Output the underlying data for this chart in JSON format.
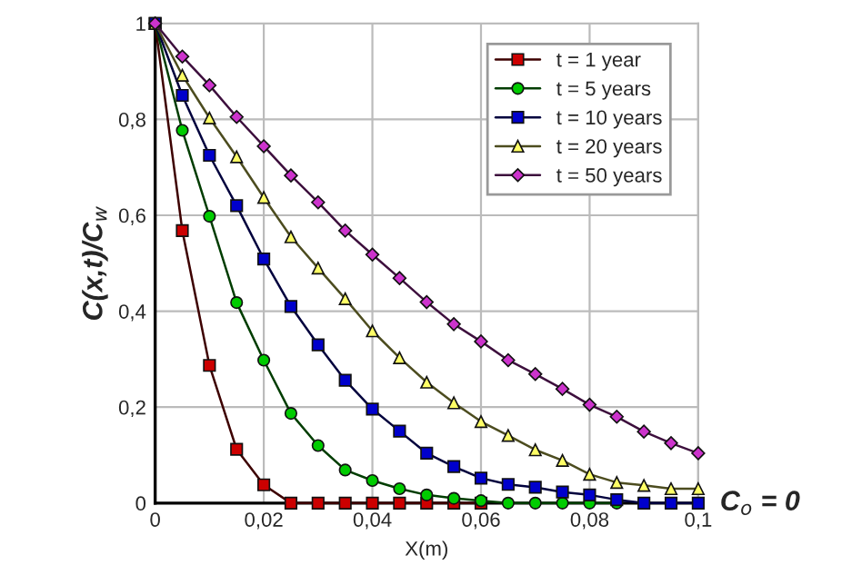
{
  "chart_data": {
    "type": "line",
    "xlabel": "X(m)",
    "ylabel": "C(x,t)/C$_{w}$",
    "x": [
      0,
      0.005,
      0.01,
      0.015,
      0.02,
      0.025,
      0.03,
      0.035,
      0.04,
      0.045,
      0.05,
      0.055,
      0.06,
      0.065,
      0.07,
      0.075,
      0.08,
      0.085,
      0.09,
      0.095,
      0.1
    ],
    "series": [
      {
        "name": "t = 1 year",
        "color": "#cc0000",
        "marker": "square",
        "values": [
          1,
          0.568,
          0.287,
          0.112,
          0.038,
          0,
          0,
          0,
          0,
          0,
          0,
          0,
          0,
          null,
          null,
          null,
          null,
          null,
          null,
          null,
          null
        ]
      },
      {
        "name": "t = 5 years",
        "color": "#00cc00",
        "marker": "circle",
        "values": [
          1,
          0.777,
          0.598,
          0.418,
          0.298,
          0.187,
          0.12,
          0.069,
          0.047,
          0.03,
          0.017,
          0.01,
          0.005,
          0,
          0,
          0,
          0,
          0,
          null,
          null,
          null
        ]
      },
      {
        "name": "t = 10 years",
        "color": "#0000cc",
        "marker": "square",
        "values": [
          1,
          0.85,
          0.725,
          0.62,
          0.509,
          0.41,
          0.33,
          0.256,
          0.196,
          0.15,
          0.104,
          0.076,
          0.052,
          0.039,
          0.033,
          0.023,
          0.017,
          0.007,
          0,
          0,
          0
        ]
      },
      {
        "name": "t = 20 years",
        "color": "#ffff66",
        "marker": "triangle",
        "values": [
          1,
          0.892,
          0.803,
          0.722,
          0.637,
          0.555,
          0.49,
          0.426,
          0.359,
          0.303,
          0.252,
          0.209,
          0.17,
          0.141,
          0.111,
          0.089,
          0.06,
          0.043,
          0.037,
          0.03,
          0.03
        ]
      },
      {
        "name": "t = 50 years",
        "color": "#cc33cc",
        "marker": "diamond",
        "values": [
          1,
          0.931,
          0.871,
          0.805,
          0.744,
          0.683,
          0.627,
          0.568,
          0.518,
          0.469,
          0.419,
          0.373,
          0.337,
          0.298,
          0.269,
          0.238,
          0.205,
          0.18,
          0.149,
          0.125,
          0.104
        ]
      }
    ],
    "xlim": [
      0,
      0.1
    ],
    "ylim": [
      0,
      1
    ],
    "xticks": [
      0,
      {
        "value": 0.02,
        "label": "0,02"
      },
      {
        "value": 0.04,
        "label": "0,04"
      },
      {
        "value": 0.06,
        "label": "0,06"
      },
      {
        "value": 0.08,
        "label": "0,08"
      },
      {
        "value": 0.1,
        "label": "0,1"
      }
    ],
    "yticks": [
      0,
      {
        "value": 0.2,
        "label": "0,2"
      },
      {
        "value": 0.4,
        "label": "0,4"
      },
      {
        "value": 0.6,
        "label": "0,6"
      },
      {
        "value": 0.8,
        "label": "0,8"
      },
      1
    ],
    "grid": true,
    "legend": "top right",
    "line_style": "solid",
    "annotations": [
      "C$_{o}$ = 0"
    ]
  }
}
